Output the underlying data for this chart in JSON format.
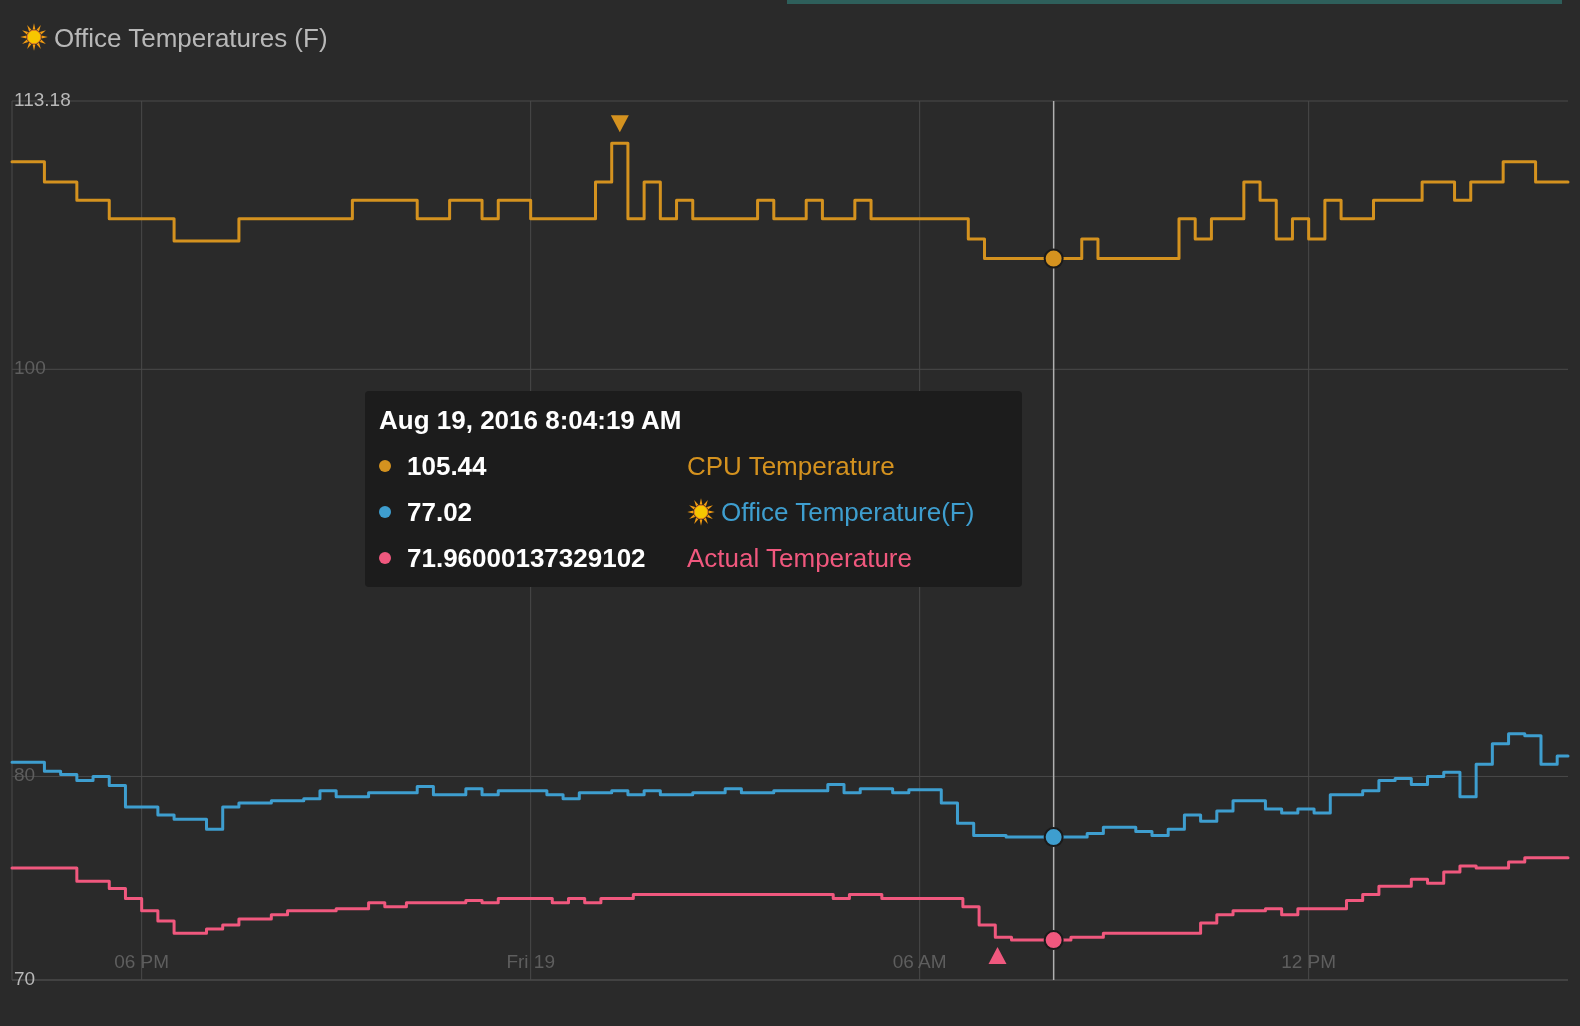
{
  "chart_data": {
    "type": "step",
    "title": "Office Temperatures (F)",
    "xlim": [
      "2016-08-18T16:00",
      "2016-08-19T16:00"
    ],
    "xticks": [
      {
        "value": "2016-08-18T18:00",
        "label": "06 PM"
      },
      {
        "value": "2016-08-19T00:00",
        "label": "Fri 19"
      },
      {
        "value": "2016-08-19T06:00",
        "label": "06 AM"
      },
      {
        "value": "2016-08-19T12:00",
        "label": "12 PM"
      }
    ],
    "ylim": [
      70,
      113.18
    ],
    "yticks": [
      70,
      80,
      100,
      113.18
    ],
    "grid": true,
    "legend": "top",
    "line_style": "solid",
    "marker": "none",
    "ref_lines": [
      {
        "axis": "x",
        "value": "2016-08-19T08:04",
        "color": "#b0b0b0"
      }
    ],
    "annotations": [
      "Aug 19, 2016 8:04:19 AM",
      "105.44",
      "77.02",
      "71.96000137329102"
    ],
    "series": [
      {
        "name": "CPU Temperature",
        "color": "#d4921f",
        "x": [
          "2016-08-18T16:00",
          "2016-08-18T16:30",
          "2016-08-18T17:00",
          "2016-08-18T17:30",
          "2016-08-18T18:30",
          "2016-08-18T19:30",
          "2016-08-18T21:15",
          "2016-08-18T22:15",
          "2016-08-18T22:45",
          "2016-08-18T23:15",
          "2016-08-18T23:30",
          "2016-08-19T00:00",
          "2016-08-19T01:00",
          "2016-08-19T01:15",
          "2016-08-19T01:30",
          "2016-08-19T01:45",
          "2016-08-19T02:00",
          "2016-08-19T02:15",
          "2016-08-19T02:30",
          "2016-08-19T03:30",
          "2016-08-19T03:45",
          "2016-08-19T04:15",
          "2016-08-19T04:30",
          "2016-08-19T05:00",
          "2016-08-19T05:15",
          "2016-08-19T06:45",
          "2016-08-19T07:00",
          "2016-08-19T08:30",
          "2016-08-19T08:45",
          "2016-08-19T10:00",
          "2016-08-19T10:15",
          "2016-08-19T10:30",
          "2016-08-19T11:00",
          "2016-08-19T11:15",
          "2016-08-19T11:30",
          "2016-08-19T11:45",
          "2016-08-19T12:00",
          "2016-08-19T12:15",
          "2016-08-19T12:30",
          "2016-08-19T13:00",
          "2016-08-19T13:45",
          "2016-08-19T14:15",
          "2016-08-19T14:30",
          "2016-08-19T15:00",
          "2016-08-19T15:30",
          "2016-08-19T16:00"
        ],
        "values": [
          110.2,
          109.2,
          108.3,
          107.4,
          106.3,
          107.4,
          108.3,
          107.4,
          108.3,
          107.4,
          108.3,
          107.4,
          109.2,
          111.1,
          107.4,
          109.2,
          107.4,
          108.3,
          107.4,
          108.3,
          107.4,
          108.3,
          107.4,
          108.3,
          107.4,
          106.4,
          105.44,
          106.4,
          105.44,
          107.4,
          106.4,
          107.4,
          109.2,
          108.3,
          106.4,
          107.4,
          106.4,
          108.3,
          107.4,
          108.3,
          109.2,
          108.3,
          109.2,
          110.2,
          109.2,
          109.2
        ]
      },
      {
        "name": "Office Temperature(F)",
        "color": "#3e9ecf",
        "x": [
          "2016-08-18T16:00",
          "2016-08-18T16:30",
          "2016-08-18T16:45",
          "2016-08-18T17:00",
          "2016-08-18T17:15",
          "2016-08-18T17:30",
          "2016-08-18T17:45",
          "2016-08-18T18:15",
          "2016-08-18T18:30",
          "2016-08-18T19:00",
          "2016-08-18T19:15",
          "2016-08-18T19:30",
          "2016-08-18T20:00",
          "2016-08-18T20:30",
          "2016-08-18T20:45",
          "2016-08-18T21:00",
          "2016-08-18T21:30",
          "2016-08-18T22:15",
          "2016-08-18T22:30",
          "2016-08-18T23:00",
          "2016-08-18T23:15",
          "2016-08-18T23:30",
          "2016-08-19T00:15",
          "2016-08-19T00:30",
          "2016-08-19T00:45",
          "2016-08-19T01:15",
          "2016-08-19T01:30",
          "2016-08-19T01:45",
          "2016-08-19T02:00",
          "2016-08-19T02:30",
          "2016-08-19T03:00",
          "2016-08-19T03:15",
          "2016-08-19T03:45",
          "2016-08-19T04:35",
          "2016-08-19T04:50",
          "2016-08-19T05:05",
          "2016-08-19T05:35",
          "2016-08-19T05:50",
          "2016-08-19T06:20",
          "2016-08-19T06:35",
          "2016-08-19T06:50",
          "2016-08-19T07:20",
          "2016-08-19T08:35",
          "2016-08-19T08:50",
          "2016-08-19T09:20",
          "2016-08-19T09:35",
          "2016-08-19T09:50",
          "2016-08-19T10:05",
          "2016-08-19T10:20",
          "2016-08-19T10:35",
          "2016-08-19T10:50",
          "2016-08-19T11:20",
          "2016-08-19T11:35",
          "2016-08-19T11:50",
          "2016-08-19T12:05",
          "2016-08-19T12:20",
          "2016-08-19T12:50",
          "2016-08-19T13:05",
          "2016-08-19T13:20",
          "2016-08-19T13:35",
          "2016-08-19T13:50",
          "2016-08-19T14:05",
          "2016-08-19T14:20",
          "2016-08-19T14:35",
          "2016-08-19T14:50",
          "2016-08-19T15:05",
          "2016-08-19T15:20",
          "2016-08-19T15:35",
          "2016-08-19T15:50",
          "2016-08-19T16:00"
        ],
        "values": [
          80.7,
          80.25,
          80.1,
          79.8,
          80.0,
          79.55,
          78.5,
          78.1,
          77.9,
          77.4,
          78.5,
          78.7,
          78.8,
          78.9,
          79.3,
          79.0,
          79.2,
          79.5,
          79.1,
          79.4,
          79.1,
          79.3,
          79.1,
          78.9,
          79.2,
          79.3,
          79.1,
          79.3,
          79.1,
          79.2,
          79.4,
          79.2,
          79.3,
          79.6,
          79.2,
          79.4,
          79.2,
          79.35,
          78.7,
          77.7,
          77.1,
          77.02,
          77.2,
          77.5,
          77.3,
          77.1,
          77.4,
          78.1,
          77.8,
          78.3,
          78.8,
          78.4,
          78.2,
          78.4,
          78.2,
          79.1,
          79.3,
          79.8,
          79.9,
          79.6,
          80.0,
          80.2,
          79.0,
          80.6,
          81.6,
          82.1,
          82.0,
          80.6,
          81.0,
          81.0
        ]
      },
      {
        "name": "Actual Temperature",
        "color": "#f0587e",
        "x": [
          "2016-08-18T16:00",
          "2016-08-18T17:00",
          "2016-08-18T17:30",
          "2016-08-18T17:45",
          "2016-08-18T18:00",
          "2016-08-18T18:15",
          "2016-08-18T18:30",
          "2016-08-18T19:00",
          "2016-08-18T19:15",
          "2016-08-18T19:30",
          "2016-08-18T20:00",
          "2016-08-18T20:15",
          "2016-08-18T21:00",
          "2016-08-18T21:30",
          "2016-08-18T21:45",
          "2016-08-18T22:05",
          "2016-08-18T23:00",
          "2016-08-18T23:15",
          "2016-08-18T23:30",
          "2016-08-19T00:20",
          "2016-08-19T00:35",
          "2016-08-19T00:50",
          "2016-08-19T01:05",
          "2016-08-19T01:35",
          "2016-08-19T04:40",
          "2016-08-19T04:55",
          "2016-08-19T05:25",
          "2016-08-19T06:40",
          "2016-08-19T06:55",
          "2016-08-19T07:10",
          "2016-08-19T07:25",
          "2016-08-19T08:20",
          "2016-08-19T08:50",
          "2016-08-19T10:20",
          "2016-08-19T10:35",
          "2016-08-19T10:50",
          "2016-08-19T11:20",
          "2016-08-19T11:35",
          "2016-08-19T11:50",
          "2016-08-19T12:35",
          "2016-08-19T12:50",
          "2016-08-19T13:05",
          "2016-08-19T13:35",
          "2016-08-19T13:50",
          "2016-08-19T14:05",
          "2016-08-19T14:20",
          "2016-08-19T14:35",
          "2016-08-19T15:05",
          "2016-08-19T15:20",
          "2016-08-19T16:00"
        ],
        "values": [
          75.5,
          74.85,
          74.5,
          74.0,
          73.4,
          72.9,
          72.3,
          72.5,
          72.7,
          73.0,
          73.2,
          73.4,
          73.5,
          73.8,
          73.6,
          73.8,
          73.9,
          73.8,
          74.0,
          73.8,
          74.0,
          73.8,
          74.0,
          74.2,
          74.0,
          74.2,
          74.0,
          73.6,
          72.7,
          72.1,
          71.96,
          72.1,
          72.3,
          72.8,
          73.2,
          73.4,
          73.5,
          73.2,
          73.5,
          73.9,
          74.2,
          74.6,
          74.95,
          74.75,
          75.3,
          75.6,
          75.5,
          75.8,
          76.0,
          76.0
        ]
      }
    ]
  }
}
